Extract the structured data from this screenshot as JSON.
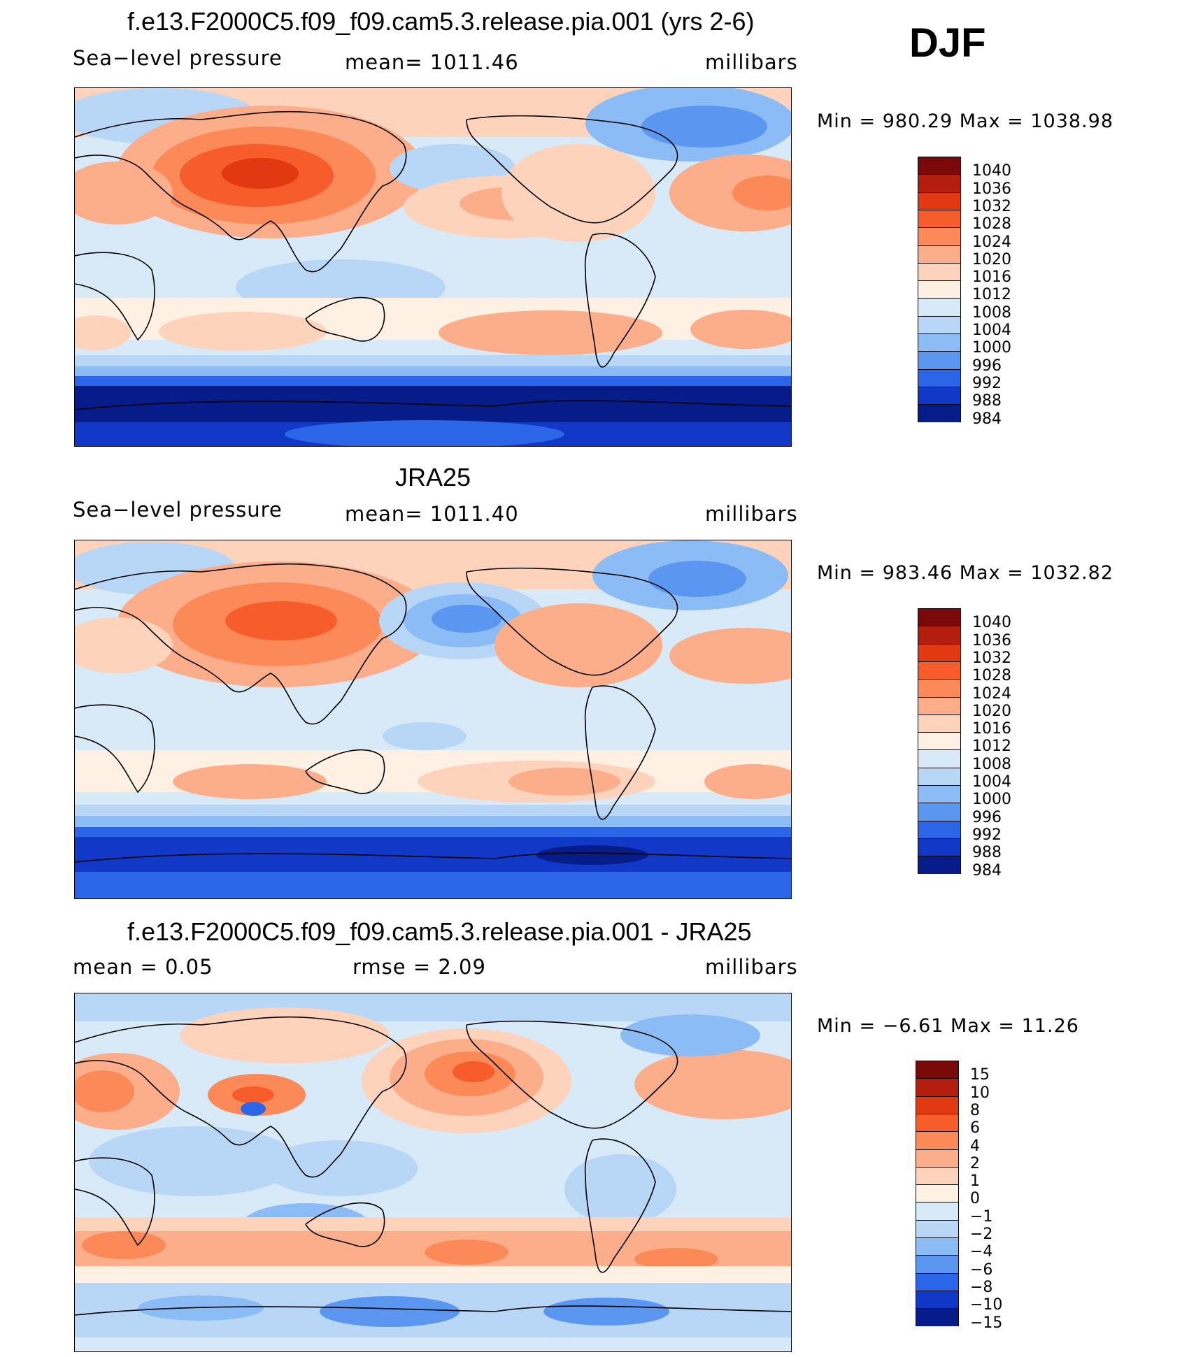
{
  "season": "DJF",
  "panels": [
    {
      "title": "f.e13.F2000C5.f09_f09.cam5.3.release.pia.001 (yrs 2-6)",
      "left": "Sea−level pressure",
      "center": "mean=  1011.46",
      "right": "millibars",
      "minmax": "Min  =  980.29  Max  =  1038.98",
      "legend": {
        "labels": [
          "1040",
          "1036",
          "1032",
          "1028",
          "1024",
          "1020",
          "1016",
          "1012",
          "1008",
          "1004",
          "1000",
          "996",
          "992",
          "988",
          "984"
        ],
        "colors": [
          "#7a0a0a",
          "#b41e0e",
          "#e13a12",
          "#f65d2a",
          "#fb8a58",
          "#fcae8b",
          "#fdd3bb",
          "#fef0e3",
          "#d8e9f7",
          "#b8d6f5",
          "#8cbcf5",
          "#5b96f0",
          "#2b66e8",
          "#1238c8",
          "#061c88"
        ]
      }
    },
    {
      "title": "JRA25",
      "left": "Sea−level pressure",
      "center": "mean=  1011.40",
      "right": "millibars",
      "minmax": "Min  =  983.46  Max  =  1032.82",
      "legend": {
        "labels": [
          "1040",
          "1036",
          "1032",
          "1028",
          "1024",
          "1020",
          "1016",
          "1012",
          "1008",
          "1004",
          "1000",
          "996",
          "992",
          "988",
          "984"
        ],
        "colors": [
          "#7a0a0a",
          "#b41e0e",
          "#e13a12",
          "#f65d2a",
          "#fb8a58",
          "#fcae8b",
          "#fdd3bb",
          "#fef0e3",
          "#d8e9f7",
          "#b8d6f5",
          "#8cbcf5",
          "#5b96f0",
          "#2b66e8",
          "#1238c8",
          "#061c88"
        ]
      }
    },
    {
      "title": "f.e13.F2000C5.f09_f09.cam5.3.release.pia.001 - JRA25",
      "left": "mean  =      0.05",
      "center": "rmse  =      2.09",
      "right": "millibars",
      "minmax": "Min  =    −6.61  Max  =     11.26",
      "legend": {
        "labels": [
          "15",
          "10",
          "8",
          "6",
          "4",
          "2",
          "1",
          "0",
          "−1",
          "−2",
          "−4",
          "−6",
          "−8",
          "−10",
          "−15"
        ],
        "colors": [
          "#7a0a0a",
          "#b41e0e",
          "#e13a12",
          "#f65d2a",
          "#fb8a58",
          "#fcae8b",
          "#fdd3bb",
          "#fef0e3",
          "#d8e9f7",
          "#b8d6f5",
          "#8cbcf5",
          "#5b96f0",
          "#2b66e8",
          "#1238c8",
          "#061c88"
        ]
      }
    }
  ]
}
